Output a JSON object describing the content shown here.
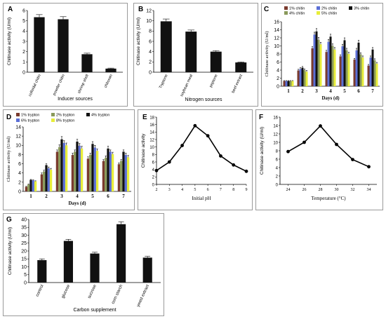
{
  "chart_data": [
    {
      "id": "A",
      "type": "bar",
      "panel_letter": "A",
      "xlabel": "Inducer sources",
      "ylabel": "Chitinase activity (U/ml)",
      "ylim": [
        0,
        6
      ],
      "yticks": [
        "0",
        "1",
        "2",
        "3",
        "4",
        "5",
        "6"
      ],
      "categories": [
        "colloidal chitin",
        "powder chitin",
        "shrimp shell",
        "chitosan"
      ],
      "values": [
        5.35,
        5.15,
        1.75,
        0.35
      ],
      "errors": [
        0.25,
        0.25,
        0.1,
        0.05
      ],
      "bar_color": "#111111"
    },
    {
      "id": "B",
      "type": "bar",
      "panel_letter": "B",
      "xlabel": "Nitrogen sources",
      "ylabel": "Chitinase activity (U/ml)",
      "ylim": [
        0,
        12
      ],
      "yticks": [
        "0",
        "2",
        "4",
        "6",
        "8",
        "10",
        "12"
      ],
      "categories": [
        "Tryptone",
        "soybean meal",
        "peptone",
        "beef extract"
      ],
      "values": [
        9.9,
        7.9,
        4.0,
        1.9
      ],
      "errors": [
        0.45,
        0.3,
        0.2,
        0.1
      ],
      "bar_color": "#111111"
    },
    {
      "id": "C",
      "type": "bar",
      "panel_letter": "C",
      "xlabel": "Days (d)",
      "ylabel": "Chitinase activity (U/ml)",
      "ylim": [
        0,
        16
      ],
      "yticks": [
        "0",
        "2",
        "4",
        "6",
        "8",
        "10",
        "12",
        "14",
        "16"
      ],
      "categories": [
        "1",
        "2",
        "3",
        "4",
        "5",
        "6",
        "7"
      ],
      "legend_position": "top",
      "series": [
        {
          "name": "1% chitin",
          "color": "#7a3b2e",
          "values": [
            1.3,
            3.9,
            9.4,
            8.5,
            7.4,
            6.6,
            5.1
          ],
          "errors": [
            0.1,
            0.3,
            0.4,
            0.4,
            0.4,
            0.3,
            0.3
          ]
        },
        {
          "name": "2% chitin",
          "color": "#5b6fd6",
          "values": [
            1.3,
            4.3,
            12.8,
            11.0,
            9.9,
            8.9,
            7.1
          ],
          "errors": [
            0.1,
            0.3,
            0.6,
            0.6,
            0.5,
            0.5,
            0.4
          ]
        },
        {
          "name": "3% chitin",
          "color": "#111111",
          "values": [
            1.3,
            4.6,
            13.6,
            12.3,
            11.4,
            10.8,
            9.1
          ],
          "errors": [
            0.1,
            0.3,
            0.7,
            0.6,
            0.6,
            0.6,
            0.5
          ]
        },
        {
          "name": "4% chitin",
          "color": "#8a9a5b",
          "values": [
            1.3,
            4.0,
            11.5,
            10.0,
            8.9,
            7.9,
            6.4
          ],
          "errors": [
            0.1,
            0.3,
            0.6,
            0.5,
            0.5,
            0.4,
            0.4
          ]
        },
        {
          "name": "5% chitin",
          "color": "#e8ee3a",
          "values": [
            1.3,
            3.6,
            10.4,
            9.1,
            8.0,
            7.1,
            5.6
          ],
          "errors": [
            0.1,
            0.3,
            0.5,
            0.5,
            0.4,
            0.4,
            0.3
          ]
        }
      ]
    },
    {
      "id": "D",
      "type": "bar",
      "panel_letter": "D",
      "xlabel": "Days (d)",
      "ylabel": "Chitinase activity (U/ml)",
      "ylim": [
        0,
        14
      ],
      "yticks": [
        "0",
        "2",
        "4",
        "6",
        "8",
        "10",
        "12",
        "14"
      ],
      "categories": [
        "1",
        "2",
        "3",
        "4",
        "5",
        "6",
        "7"
      ],
      "legend_position": "top",
      "series": [
        {
          "name": "1% trypton",
          "color": "#7a3b2e",
          "values": [
            1.0,
            3.7,
            8.6,
            7.9,
            7.1,
            6.6,
            5.9
          ],
          "errors": [
            0.1,
            0.3,
            0.4,
            0.4,
            0.4,
            0.3,
            0.3
          ]
        },
        {
          "name": "2% trypton",
          "color": "#8a9a5b",
          "values": [
            1.5,
            4.3,
            9.6,
            8.6,
            7.9,
            7.3,
            6.6
          ],
          "errors": [
            0.1,
            0.3,
            0.5,
            0.4,
            0.4,
            0.4,
            0.3
          ]
        },
        {
          "name": "4% trypton",
          "color": "#111111",
          "values": [
            2.5,
            5.7,
            11.3,
            10.8,
            10.3,
            9.3,
            8.6
          ],
          "errors": [
            0.1,
            0.3,
            0.6,
            0.5,
            0.5,
            0.5,
            0.4
          ]
        },
        {
          "name": "6% trypton",
          "color": "#5b6fd6",
          "values": [
            2.4,
            5.0,
            10.5,
            9.9,
            9.5,
            8.6,
            7.9
          ],
          "errors": [
            0.1,
            0.3,
            0.5,
            0.5,
            0.5,
            0.4,
            0.4
          ]
        },
        {
          "name": "8% trypton",
          "color": "#e8ee3a",
          "values": [
            2.2,
            4.7,
            10.0,
            9.3,
            8.8,
            8.1,
            7.4
          ],
          "errors": [
            0.1,
            0.3,
            0.5,
            0.5,
            0.4,
            0.4,
            0.4
          ]
        }
      ]
    },
    {
      "id": "E",
      "type": "line",
      "panel_letter": "E",
      "xlabel": "Initial pH",
      "ylabel": "Chitinase activity",
      "xlim": [
        2,
        9
      ],
      "ylim": [
        0,
        18
      ],
      "yticks": [
        "0",
        "2",
        "4",
        "6",
        "8",
        "10",
        "12",
        "14",
        "16",
        "18"
      ],
      "xticks": [
        "2",
        "3",
        "4",
        "5",
        "6",
        "7",
        "8",
        "9"
      ],
      "x": [
        2,
        3,
        4,
        5,
        6,
        7,
        8,
        9
      ],
      "y": [
        3.7,
        6.0,
        10.4,
        15.7,
        13.0,
        7.6,
        5.2,
        3.5
      ],
      "errors": [
        0.2,
        0.3,
        0.4,
        0.4,
        0.4,
        0.3,
        0.2,
        0.2
      ]
    },
    {
      "id": "F",
      "type": "line",
      "panel_letter": "F",
      "xlabel": "Temperature (°C)",
      "ylabel": "Chitinase activity (U/ml)",
      "xlim": [
        23,
        35
      ],
      "ylim": [
        0,
        16
      ],
      "yticks": [
        "0",
        "2",
        "4",
        "6",
        "8",
        "10",
        "12",
        "14",
        "16"
      ],
      "xticks": [
        "24",
        "26",
        "28",
        "30",
        "32",
        "34"
      ],
      "x": [
        24,
        26,
        28,
        30,
        32,
        34
      ],
      "y": [
        7.8,
        10.0,
        13.9,
        9.5,
        5.9,
        4.2
      ],
      "errors": [
        0.3,
        0.3,
        0.4,
        0.3,
        0.2,
        0.2
      ]
    },
    {
      "id": "G",
      "type": "bar",
      "panel_letter": "G",
      "xlabel": "Carbon supplement",
      "ylabel": "Chitinase activity (U/ml)",
      "ylim": [
        0,
        40
      ],
      "yticks": [
        "0",
        "5",
        "10",
        "15",
        "20",
        "25",
        "30",
        "35",
        "40"
      ],
      "categories": [
        "control",
        "glucose",
        "sucrose",
        "corn starch",
        "yeast extract"
      ],
      "values": [
        14.2,
        26.4,
        18.4,
        37.0,
        15.8
      ],
      "errors": [
        0.8,
        1.0,
        0.8,
        1.5,
        0.8
      ],
      "bar_color": "#111111"
    }
  ]
}
